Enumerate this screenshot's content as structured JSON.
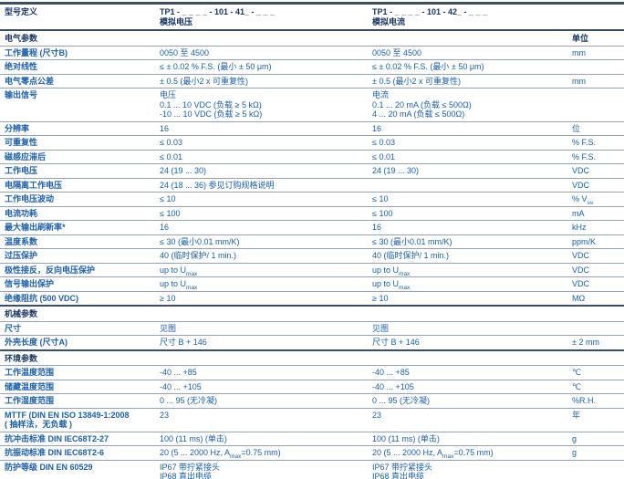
{
  "colors": {
    "text_blue": "#1b5fa8",
    "text_navy": "#17335f",
    "line_thin": "#95a3b4",
    "line_thick": "#3d4e63",
    "background": "#ffffff"
  },
  "header": {
    "label": "型号定义",
    "col_voltage": [
      "TP1 - _ _ _ _ - 101 - 41_ - _ _ _",
      "模拟电压"
    ],
    "col_current": [
      "TP1 - _ _ _ _ - 101 - 42_ - _ _ _",
      "模拟电流"
    ],
    "unit": ""
  },
  "sections": [
    {
      "title": "电气参数",
      "unit_header": "单位",
      "rows": [
        {
          "label": "工作量程 (尺寸B)",
          "voltage": "0050 至 4500",
          "current": "0050 至 4500",
          "unit": "mm"
        },
        {
          "label": "绝对线性",
          "voltage": "≤ ± 0.02 % F.S. (最小 ± 50 μm)",
          "current": "≤ ± 0.02 % F.S. (最小 ± 50 μm)",
          "unit": ""
        },
        {
          "label": "电气零点公差",
          "voltage": "± 0.5 (最小2 x 可重复性)",
          "current": "± 0.5 (最小2 x 可重复性)",
          "unit": "mm"
        },
        {
          "label": "输出信号",
          "voltage": [
            "电压",
            "0.1 ... 10 VDC (负载 ≥ 5 kΩ)",
            "-10 ... 10 VDC (负载 ≥ 5 kΩ)"
          ],
          "current": [
            "电流",
            "0.1 ... 20 mA (负载 ≤ 500Ω)",
            "4 ... 20 mA (负载 ≤ 500Ω)"
          ],
          "unit": ""
        },
        {
          "label": "分辨率",
          "voltage": "16",
          "current": "16",
          "unit": "位"
        },
        {
          "label": "可重复性",
          "voltage": "≤ 0.03",
          "current": "≤ 0.03",
          "unit": "% F.S."
        },
        {
          "label": "磁感应滞后",
          "voltage": "≤ 0.01",
          "current": "≤ 0.01",
          "unit": "% F.S."
        },
        {
          "label": "工作电压",
          "voltage": "24 (19 ... 30)",
          "current": "24 (19 ... 30)",
          "unit": "VDC"
        },
        {
          "label": "电隔离工作电压",
          "voltage": "24 (18 ... 36) 参见订购规格说明",
          "current": "",
          "unit": "VDC"
        },
        {
          "label": "工作电压波动",
          "voltage": "≤ 10",
          "current": "≤ 10",
          "unit": "% V_{ss}"
        },
        {
          "label": "电流功耗",
          "voltage": "≤ 100",
          "current": "≤ 100",
          "unit": "mA"
        },
        {
          "label": "最大输出刷新率*",
          "voltage": "16",
          "current": "16",
          "unit": "kHz"
        },
        {
          "label": "温度系数",
          "voltage": "≤ 30 (最小0.01 mm/K)",
          "current": "≤ 30 (最小0.01 mm/K)",
          "unit": "ppm/K"
        },
        {
          "label": "过压保护",
          "voltage": "40 (临时保护/ 1 min.)",
          "current": "40 (临时保护/ 1 min.)",
          "unit": "VDC"
        },
        {
          "label": "极性接反，反向电压保护",
          "voltage": "up to U_{max}",
          "current": "up to U_{max}",
          "unit": "VDC"
        },
        {
          "label": "信号输出保护",
          "voltage": "up to U_{max}",
          "current": "up to U_{max}",
          "unit": "VDC"
        },
        {
          "label": "绝缘阻抗 (500 VDC)",
          "voltage": "≥ 10",
          "current": "≥ 10",
          "unit": "MΩ"
        }
      ]
    },
    {
      "title": "机械参数",
      "unit_header": "",
      "rows": [
        {
          "label": "尺寸",
          "voltage": "见图",
          "current": "见图",
          "unit": ""
        },
        {
          "label": "外壳长度 (尺寸A)",
          "voltage": "尺寸 B + 146",
          "current": "尺寸 B + 146",
          "unit": "± 2 mm"
        }
      ]
    },
    {
      "title": "环境参数",
      "unit_header": "",
      "rows": [
        {
          "label": "工作温度范围",
          "voltage": "-40 ... +85",
          "current": "-40 ... +85",
          "unit": "℃"
        },
        {
          "label": "储藏温度范围",
          "voltage": "-40 ... +105",
          "current": "-40 ... +105",
          "unit": "℃"
        },
        {
          "label": "工作湿度范围",
          "voltage": "0 ... 95 (无冷凝)",
          "current": "0 ... 95 (无冷凝)",
          "unit": "%R.H."
        },
        {
          "label": [
            "MTTF (DIN EN ISO 13849-1:2008",
            "( 抽样法，无负载 )"
          ],
          "voltage": "23",
          "current": "23",
          "unit": "年"
        },
        {
          "label": "抗冲击标准 DIN IEC68T2-27",
          "voltage": "100 (11 ms) (单击)",
          "current": "100 (11 ms) (单击)",
          "unit": "g"
        },
        {
          "label": "抗振动标准 DIN IEC68T2-6",
          "voltage": "20 (5 ... 2000 Hz, A_{max}=0.75 mm)",
          "current": "20 (5 ... 2000 Hz, A_{max}=0.75 mm)",
          "unit": "g"
        },
        {
          "label": "防护等级 DIN EN 60529",
          "voltage": [
            "IP67 带拧紧接头",
            "IP68 直出电缆"
          ],
          "current": [
            "IP67 带拧紧接头",
            "IP68 直出电缆"
          ],
          "unit": ""
        }
      ]
    }
  ]
}
